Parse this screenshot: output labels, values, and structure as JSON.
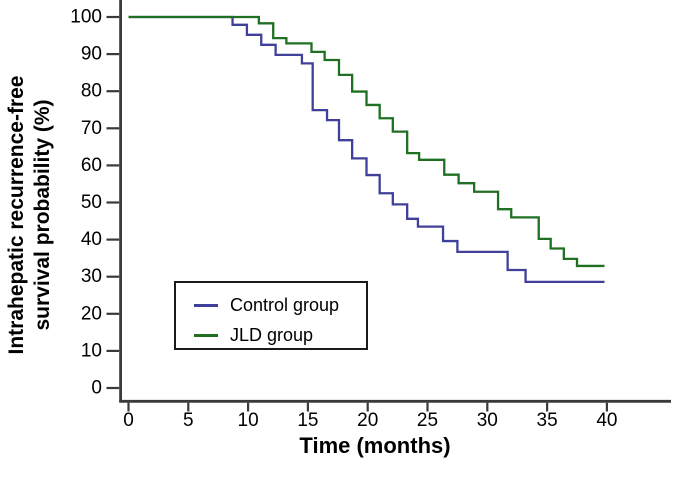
{
  "figure": {
    "background": "#ffffff",
    "axis_color": "#3a3a3a",
    "text_color": "#000000"
  },
  "axes": {
    "y_label_line1": "Intrahepatic recurrence-free",
    "y_label_line2": "survival probability (%)",
    "x_label": "Time (months)"
  },
  "legend": {
    "items": [
      {
        "label": "Control group",
        "color": "#40409A"
      },
      {
        "label": "JLD group",
        "color": "#1F7023"
      }
    ]
  },
  "chart_data": {
    "type": "line",
    "subtype": "kaplan-meier-step-curve",
    "title": "",
    "xlabel": "Time (months)",
    "ylabel": "Intrahepatic recurrence-free survival probability (%)",
    "xlim": [
      0,
      40
    ],
    "ylim": [
      0,
      100
    ],
    "x_ticks": [
      0,
      5,
      10,
      15,
      20,
      25,
      30,
      35,
      40
    ],
    "y_ticks": [
      0,
      10,
      20,
      30,
      40,
      50,
      60,
      70,
      80,
      90,
      100
    ],
    "grid": false,
    "legend_position": "inside-lower-left",
    "series": [
      {
        "name": "Control group",
        "color": "#40409A",
        "end_x": 39.8,
        "steps": [
          [
            0,
            100
          ],
          [
            8.7,
            97.9
          ],
          [
            9.9,
            95.2
          ],
          [
            11.1,
            92.5
          ],
          [
            12.3,
            89.8
          ],
          [
            14.5,
            87.5
          ],
          [
            15.4,
            74.9
          ],
          [
            16.6,
            72.2
          ],
          [
            17.6,
            66.8
          ],
          [
            18.7,
            61.9
          ],
          [
            19.9,
            57.4
          ],
          [
            21.0,
            52.5
          ],
          [
            22.1,
            49.5
          ],
          [
            23.3,
            45.6
          ],
          [
            24.2,
            43.5
          ],
          [
            26.3,
            39.6
          ],
          [
            27.5,
            36.7
          ],
          [
            31.7,
            31.8
          ],
          [
            33.2,
            28.6
          ]
        ]
      },
      {
        "name": "JLD group",
        "color": "#1F7023",
        "end_x": 39.8,
        "steps": [
          [
            0,
            100
          ],
          [
            10.9,
            98.3
          ],
          [
            12.1,
            94.3
          ],
          [
            13.2,
            92.9
          ],
          [
            15.3,
            90.6
          ],
          [
            16.4,
            88.4
          ],
          [
            17.6,
            84.4
          ],
          [
            18.7,
            79.9
          ],
          [
            19.9,
            76.3
          ],
          [
            21.0,
            72.7
          ],
          [
            22.1,
            69.1
          ],
          [
            23.3,
            63.3
          ],
          [
            24.3,
            61.5
          ],
          [
            26.4,
            57.5
          ],
          [
            27.6,
            55.2
          ],
          [
            28.9,
            52.9
          ],
          [
            30.9,
            48.2
          ],
          [
            32.0,
            46.0
          ],
          [
            34.3,
            40.2
          ],
          [
            35.3,
            37.6
          ],
          [
            36.4,
            34.8
          ],
          [
            37.5,
            32.9
          ]
        ]
      }
    ]
  }
}
